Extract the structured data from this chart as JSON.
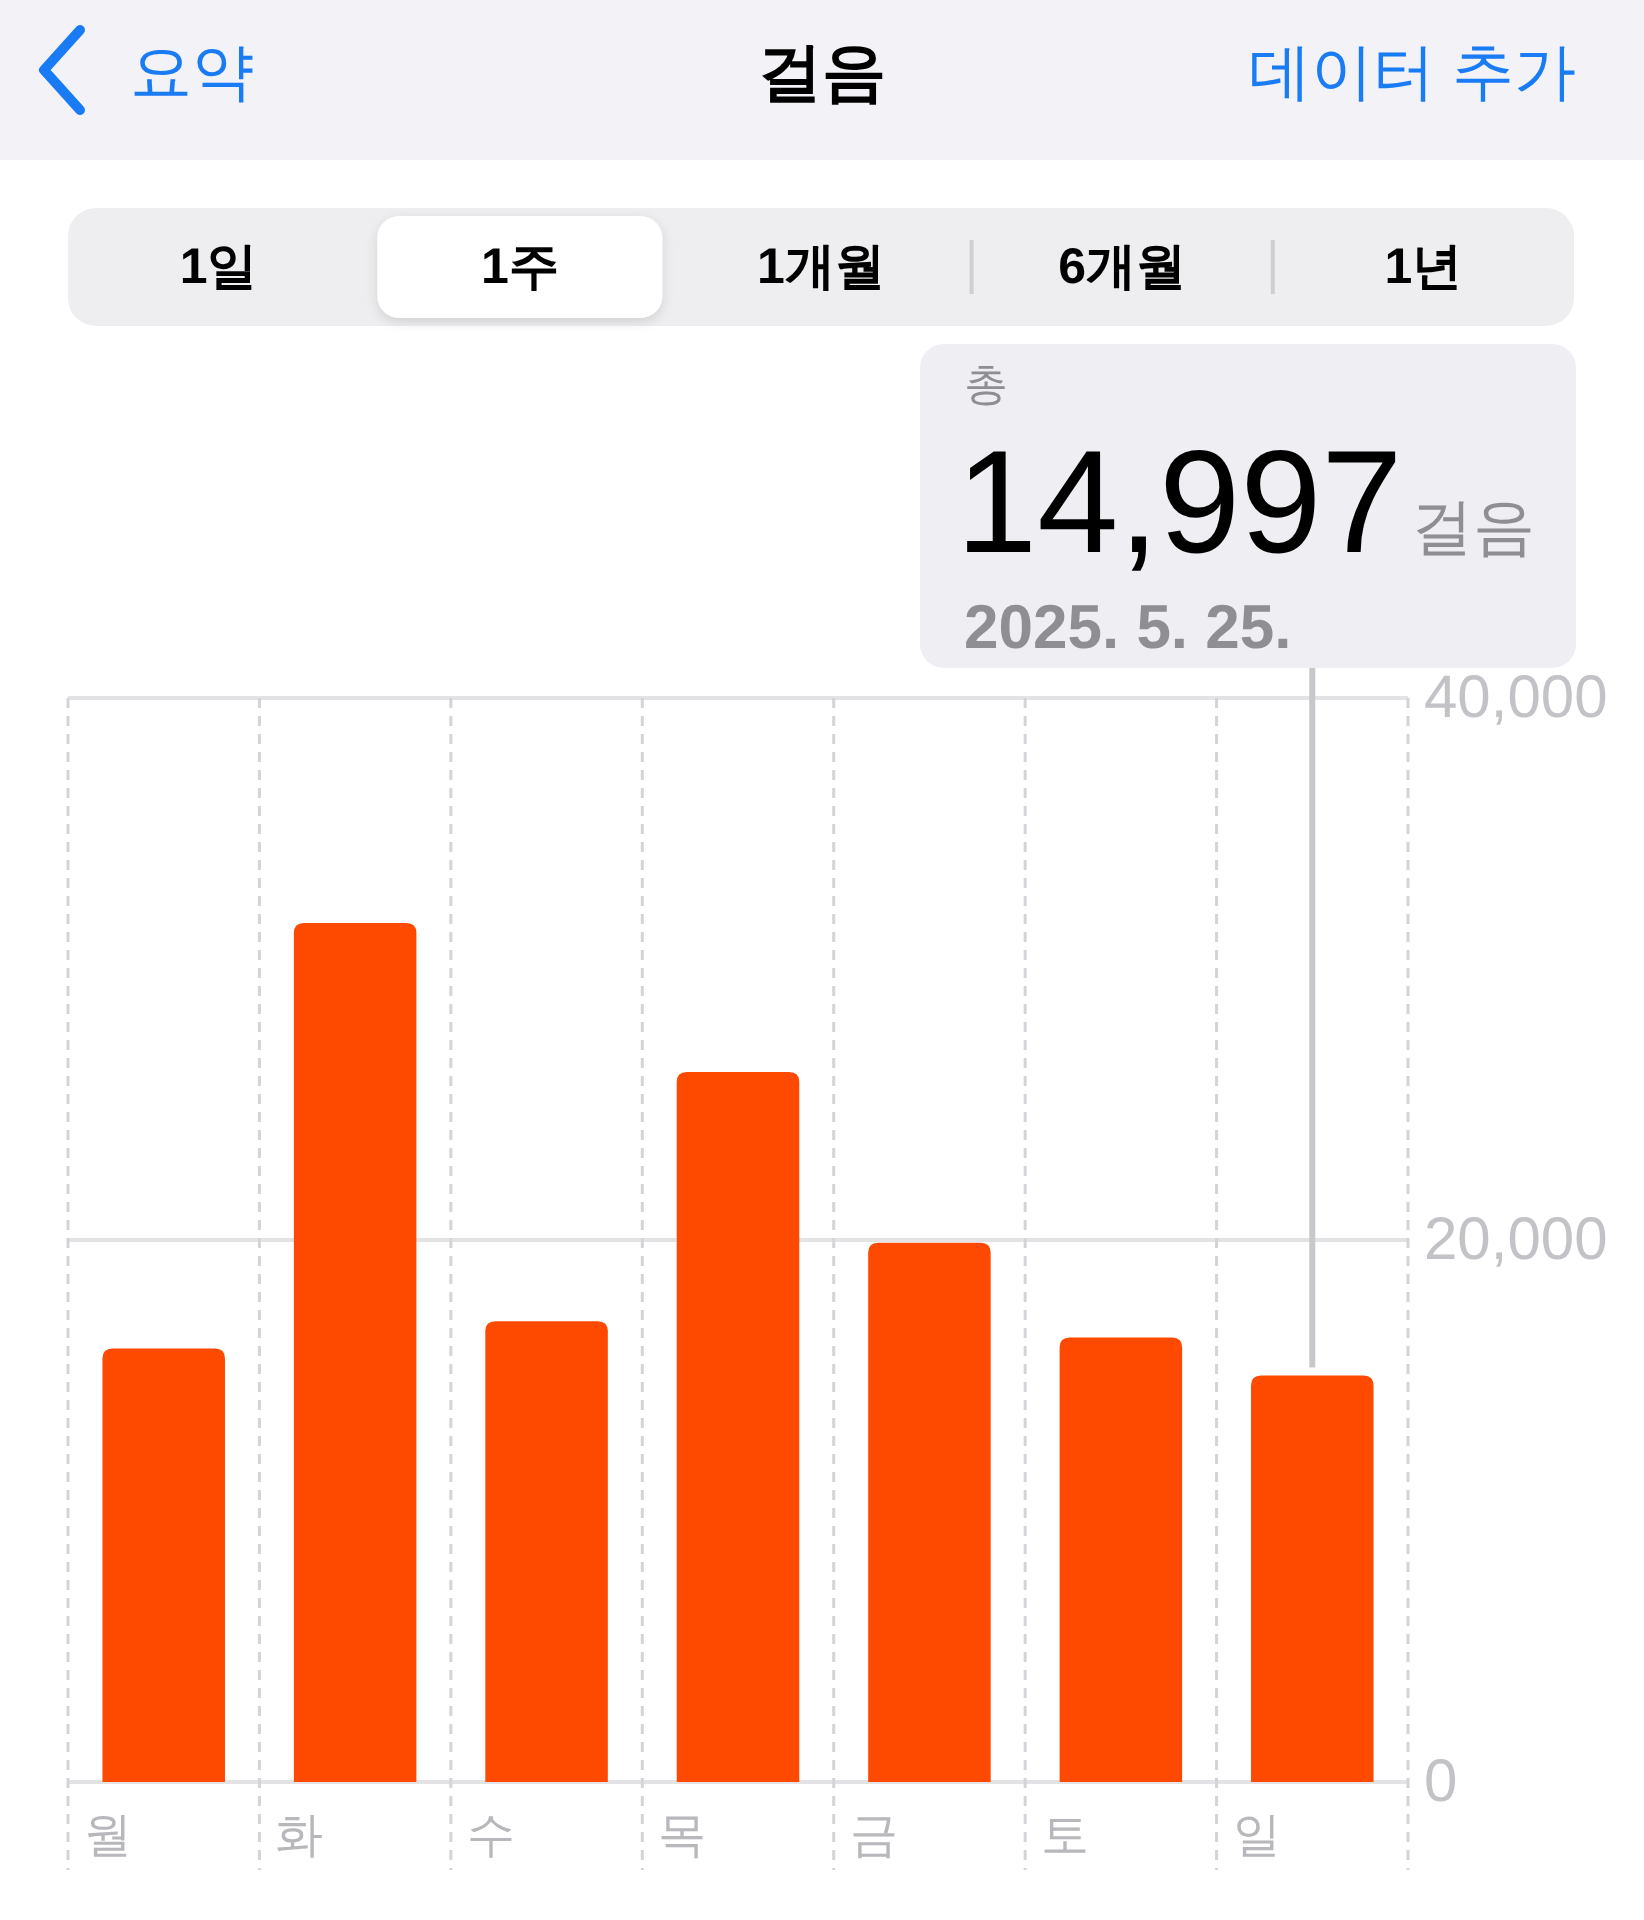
{
  "chart_data": {
    "type": "bar",
    "title": "걸음",
    "categories": [
      "월",
      "화",
      "수",
      "목",
      "금",
      "토",
      "일"
    ],
    "values": [
      16000,
      31700,
      17000,
      26200,
      19900,
      16400,
      14997
    ],
    "color": "#fe4a00",
    "ylim": [
      0,
      40000
    ],
    "yticks": [
      {
        "value": 0,
        "label": "0"
      },
      {
        "value": 20000,
        "label": "20,000"
      },
      {
        "value": 40000,
        "label": "40,000"
      }
    ],
    "grid": true,
    "annotations": [
      "요약",
      "데이터 추가",
      "1일",
      "1주",
      "1개월",
      "6개월",
      "1년",
      "총",
      "14,997",
      "걸음",
      "2025. 5. 25."
    ]
  }
}
